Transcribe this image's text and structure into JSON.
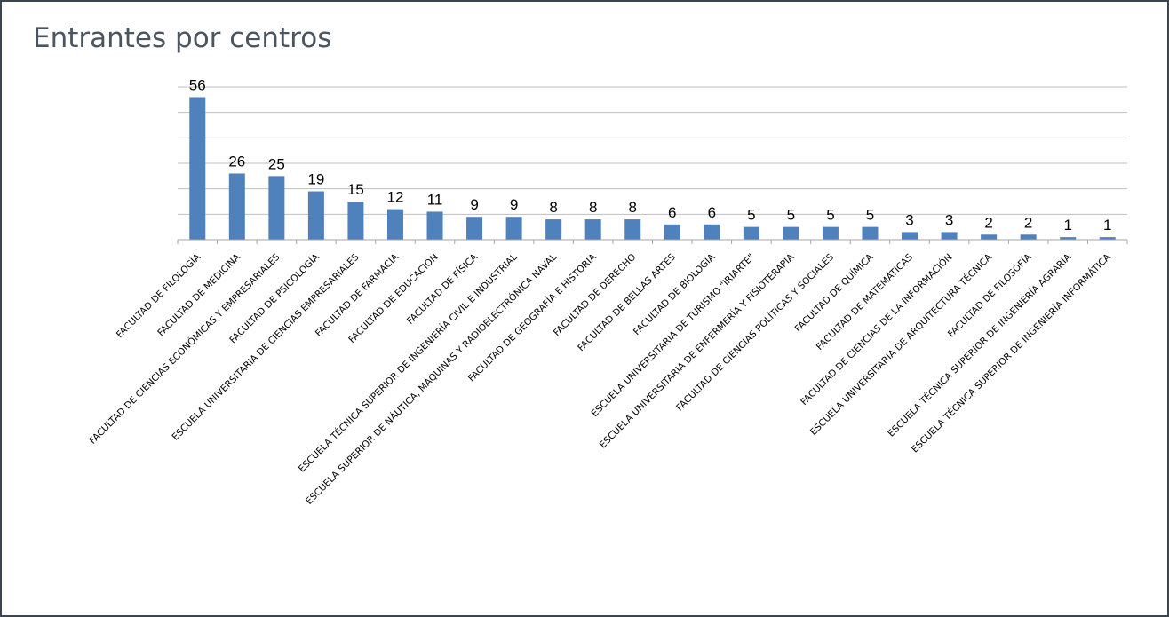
{
  "title": "Entrantes por centros",
  "chart_data": {
    "type": "bar",
    "title": "Entrantes por centros",
    "xlabel": "",
    "ylabel": "",
    "ylim": [
      0,
      60
    ],
    "grid": true,
    "legend": "none",
    "color": "#4f81bd",
    "categories": [
      "FACULTAD DE FILOLOGÍA",
      "FACULTAD DE MEDICINA",
      "FACULTAD DE CIENCIAS ECONÓMICAS Y EMPRESARIALES",
      "FACULTAD DE PSICOLOGÍA",
      "ESCUELA UNIVERSITARIA DE CIENCIAS EMPRESARIALES",
      "FACULTAD DE FARMACIA",
      "FACULTAD DE EDUCACIÓN",
      "FACULTAD DE FÍSICA",
      "ESCUELA TÉCNICA SUPERIOR DE INGENIERÍA CIVIL E INDUSTRIAL",
      "ESCUELA SUPERIOR DE NÁUTICA, MÁQUINAS Y RADIOELECTRÓNICA NAVAL",
      "FACULTAD DE GEOGRAFÍA E HISTORIA",
      "FACULTAD DE DERECHO",
      "FACULTAD DE BELLAS ARTES",
      "FACULTAD DE BIOLOGÍA",
      "ESCUELA UNIVERSITARIA DE TURISMO \"IRIARTE\"",
      "ESCUELA UNIVERSITARIA DE ENFERMERÍA Y FISIOTERAPIA",
      "FACULTAD DE CIENCIAS POLÍTICAS Y SOCIALES",
      "FACULTAD DE QUÍMICA",
      "FACULTAD DE MATEMÁTICAS",
      "FACULTAD DE CIENCIAS DE LA INFORMACIÓN",
      "ESCUELA UNIVERSITARIA DE ARQUITECTURA TÉCNICA",
      "FACULTAD DE FILOSOFÍA",
      "ESCUELA TÉCNICA SUPERIOR DE INGENIERÍA AGRARIA",
      "ESCUELA TÉCNICA SUPERIOR DE INGENIERÍA INFORMÁTICA"
    ],
    "values": [
      56,
      26,
      25,
      19,
      15,
      12,
      11,
      9,
      9,
      8,
      8,
      8,
      6,
      6,
      5,
      5,
      5,
      5,
      3,
      3,
      2,
      2,
      1,
      1
    ]
  }
}
